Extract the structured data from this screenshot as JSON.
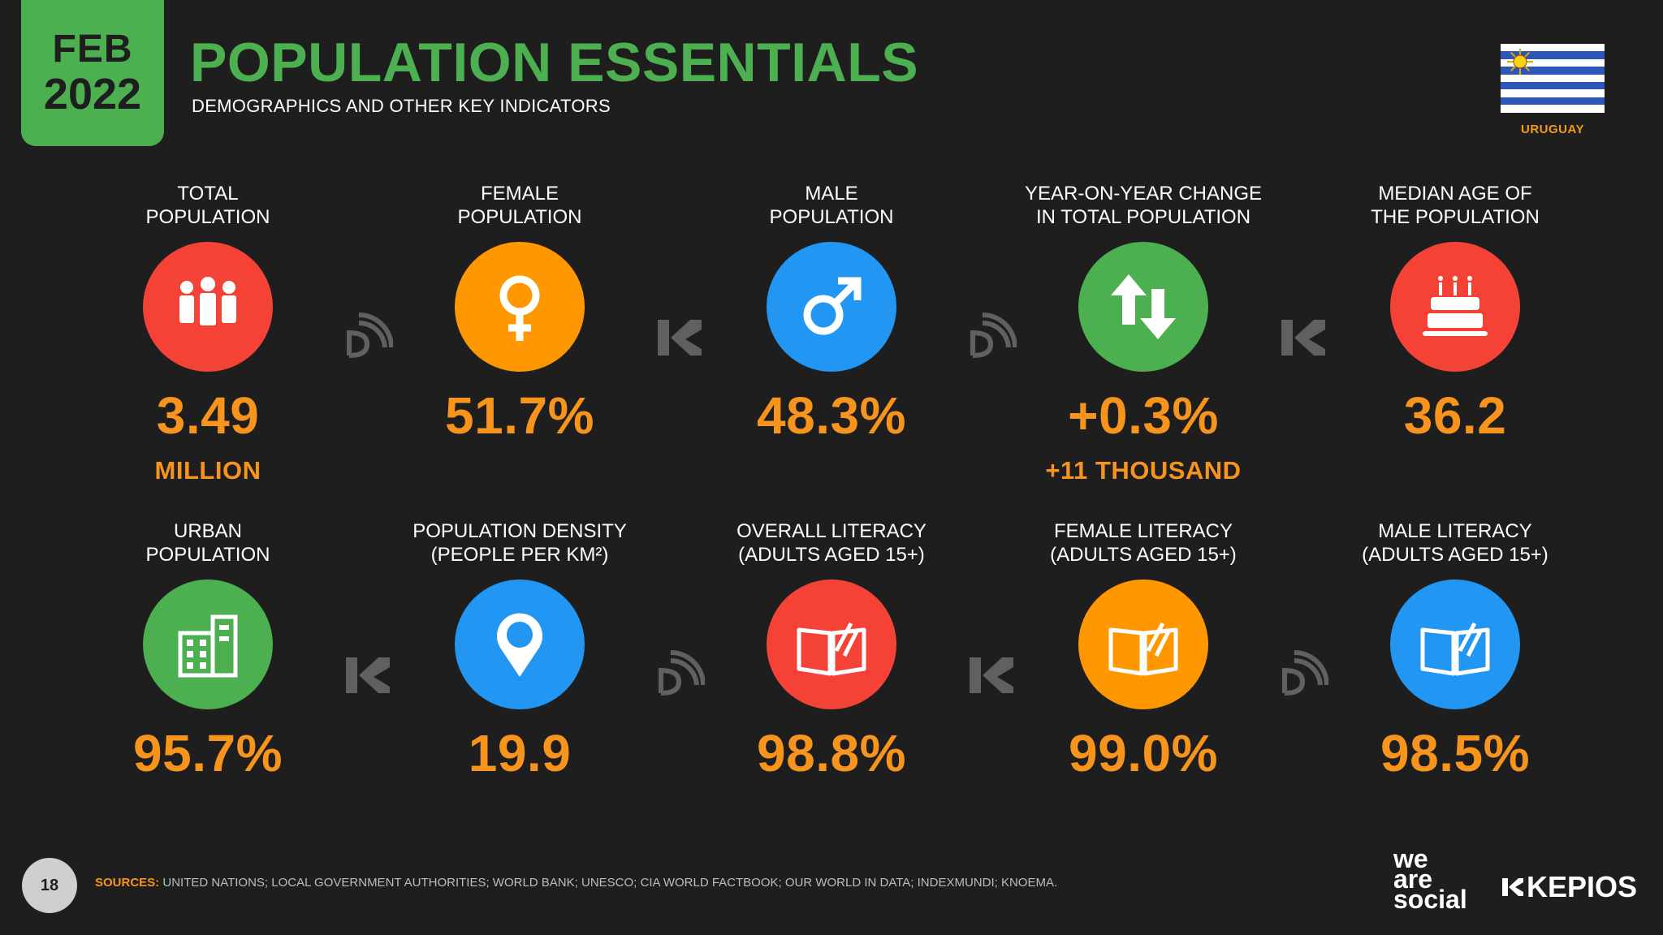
{
  "header": {
    "month": "FEB",
    "year": "2022",
    "title": "POPULATION ESSENTIALS",
    "subtitle": "DEMOGRAPHICS AND OTHER KEY INDICATORS",
    "country": "URUGUAY"
  },
  "colors": {
    "accent_green": "#4caf50",
    "value_orange": "#f7941d",
    "red": "#f44336",
    "orange": "#ff9800",
    "blue": "#2196f3",
    "green": "#4caf50"
  },
  "stats": [
    {
      "label_line1": "TOTAL",
      "label_line2": "POPULATION",
      "value": "3.49",
      "sub": "MILLION",
      "icon": "people-icon",
      "color": "red"
    },
    {
      "label_line1": "FEMALE",
      "label_line2": "POPULATION",
      "value": "51.7%",
      "sub": "",
      "icon": "female-symbol-icon",
      "color": "orange"
    },
    {
      "label_line1": "MALE",
      "label_line2": "POPULATION",
      "value": "48.3%",
      "sub": "",
      "icon": "male-symbol-icon",
      "color": "blue"
    },
    {
      "label_line1": "YEAR-ON-YEAR CHANGE",
      "label_line2": "IN TOTAL POPULATION",
      "value": "+0.3%",
      "sub": "+11 THOUSAND",
      "icon": "up-down-arrows-icon",
      "color": "green"
    },
    {
      "label_line1": "MEDIAN AGE OF",
      "label_line2": "THE POPULATION",
      "value": "36.2",
      "sub": "",
      "icon": "birthday-cake-icon",
      "color": "red"
    },
    {
      "label_line1": "URBAN",
      "label_line2": "POPULATION",
      "value": "95.7%",
      "sub": "",
      "icon": "buildings-icon",
      "color": "green"
    },
    {
      "label_line1": "POPULATION DENSITY",
      "label_line2": "(PEOPLE PER KM²)",
      "value": "19.9",
      "sub": "",
      "icon": "map-pin-icon",
      "color": "blue"
    },
    {
      "label_line1": "OVERALL LITERACY",
      "label_line2": "(ADULTS AGED 15+)",
      "value": "98.8%",
      "sub": "",
      "icon": "open-book-icon",
      "color": "red"
    },
    {
      "label_line1": "FEMALE LITERACY",
      "label_line2": "(ADULTS AGED 15+)",
      "value": "99.0%",
      "sub": "",
      "icon": "open-book-icon",
      "color": "orange"
    },
    {
      "label_line1": "MALE LITERACY",
      "label_line2": "(ADULTS AGED 15+)",
      "value": "98.5%",
      "sub": "",
      "icon": "open-book-icon",
      "color": "blue"
    }
  ],
  "footer": {
    "page_number": "18",
    "sources_label": "SOURCES:",
    "sources_text": "UNITED NATIONS; LOCAL GOVERNMENT AUTHORITIES; WORLD BANK; UNESCO; CIA WORLD FACTBOOK; OUR WORLD IN DATA; INDEXMUNDI; KNOEMA.",
    "brand1_line1": "we",
    "brand1_line2": "are",
    "brand1_line3": "social",
    "brand2": "KEPIOS"
  }
}
